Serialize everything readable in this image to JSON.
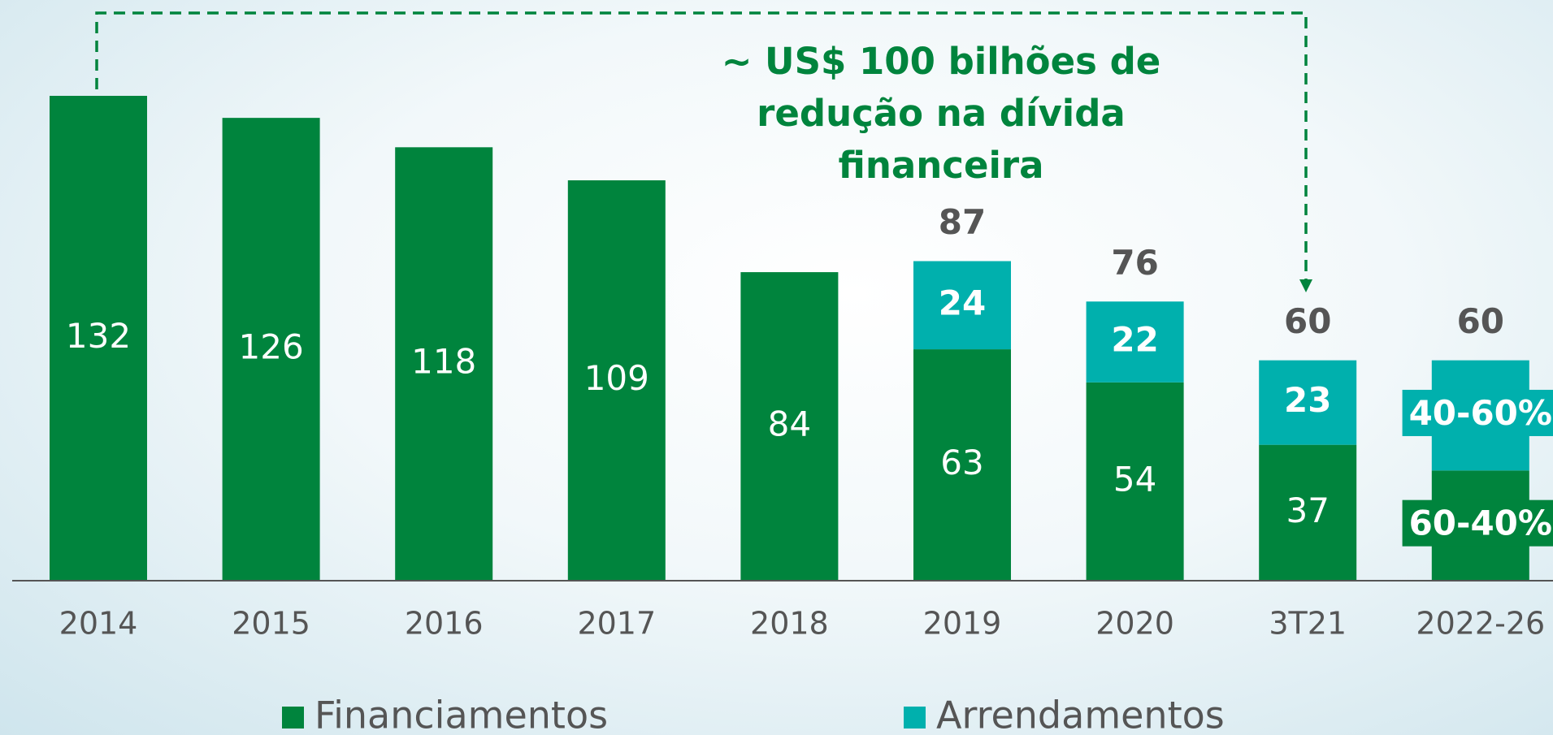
{
  "chart_data": {
    "type": "stacked_bar",
    "annotation": [
      "~ US$ 100 bilhões de",
      "redução na dívida",
      "financeira"
    ],
    "categories": [
      "2014",
      "2015",
      "2016",
      "2017",
      "2018",
      "2019",
      "2020",
      "3T21",
      "2022-26"
    ],
    "series": [
      {
        "name": "Financiamentos",
        "color": "#00843d",
        "values": [
          132,
          126,
          118,
          109,
          84,
          63,
          54,
          37,
          30
        ],
        "value_labels": [
          null,
          null,
          null,
          null,
          null,
          null,
          null,
          null,
          "60-40%"
        ]
      },
      {
        "name": "Arrendamentos",
        "color": "#00b0ad",
        "values": [
          null,
          null,
          null,
          null,
          null,
          24,
          22,
          23,
          30
        ],
        "value_labels": [
          null,
          null,
          null,
          null,
          null,
          null,
          null,
          null,
          "40-60%"
        ]
      }
    ],
    "totals": [
      null,
      null,
      null,
      null,
      null,
      87,
      76,
      60,
      60
    ]
  }
}
